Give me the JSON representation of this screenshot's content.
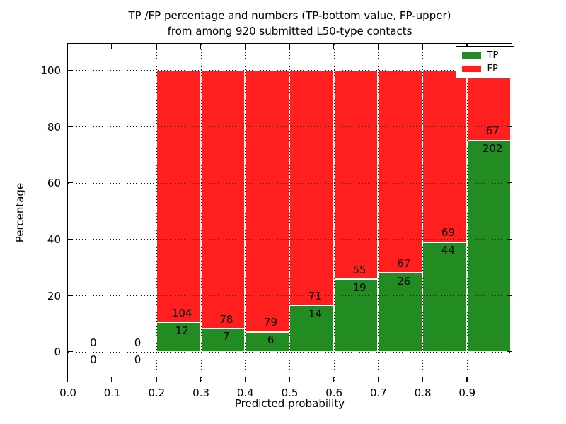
{
  "figure": {
    "title_line1": "TP /FP percentage and numbers (TP-bottom value, FP-upper)",
    "title_line2": "from among 920 submitted L50-type contacts",
    "xlabel": "Predicted probability",
    "ylabel": "Percentage"
  },
  "colors": {
    "tp": "#228b22",
    "fp": "#ff1f1f",
    "bar_edge": "#ffffff",
    "grid": "#111111",
    "axis": "#000000",
    "background": "#ffffff"
  },
  "chart_data": {
    "type": "bar",
    "stacked": true,
    "orientation": "vertical",
    "title": "TP /FP percentage and numbers (TP-bottom value, FP-upper) from among 920 submitted L50-type contacts",
    "xlabel": "Predicted probability",
    "ylabel": "Percentage",
    "xlim": [
      0.0,
      1.0
    ],
    "ylim": [
      -10.5,
      109.5
    ],
    "grid": true,
    "grid_style": "dotted",
    "total_submitted": 920,
    "bar_note": "Each bar stacks to 100%; green bottom = TP share, red top = FP share; numbers printed are raw counts (TP below boundary, FP above boundary)",
    "xticks": [
      {
        "v": 0.0,
        "label": "0.0"
      },
      {
        "v": 0.1,
        "label": "0.1"
      },
      {
        "v": 0.2,
        "label": "0.2"
      },
      {
        "v": 0.3,
        "label": "0.3"
      },
      {
        "v": 0.4,
        "label": "0.4"
      },
      {
        "v": 0.5,
        "label": "0.5"
      },
      {
        "v": 0.6,
        "label": "0.6"
      },
      {
        "v": 0.7,
        "label": "0.7"
      },
      {
        "v": 0.8,
        "label": "0.8"
      },
      {
        "v": 0.9,
        "label": "0.9"
      }
    ],
    "yticks": [
      {
        "v": 0,
        "label": "0"
      },
      {
        "v": 20,
        "label": "20"
      },
      {
        "v": 40,
        "label": "40"
      },
      {
        "v": 60,
        "label": "60"
      },
      {
        "v": 80,
        "label": "80"
      },
      {
        "v": 100,
        "label": "100"
      }
    ],
    "bins": [
      {
        "range": [
          0.0,
          0.1
        ],
        "tp": 0,
        "fp": 0,
        "tp_pct": 0.0,
        "has_bar": false
      },
      {
        "range": [
          0.1,
          0.2
        ],
        "tp": 0,
        "fp": 0,
        "tp_pct": 0.0,
        "has_bar": false
      },
      {
        "range": [
          0.2,
          0.3
        ],
        "tp": 12,
        "fp": 104,
        "tp_pct": 10.34,
        "has_bar": true
      },
      {
        "range": [
          0.3,
          0.4
        ],
        "tp": 7,
        "fp": 78,
        "tp_pct": 8.24,
        "has_bar": true
      },
      {
        "range": [
          0.4,
          0.5
        ],
        "tp": 6,
        "fp": 79,
        "tp_pct": 7.06,
        "has_bar": true
      },
      {
        "range": [
          0.5,
          0.6
        ],
        "tp": 14,
        "fp": 71,
        "tp_pct": 16.47,
        "has_bar": true
      },
      {
        "range": [
          0.6,
          0.7
        ],
        "tp": 19,
        "fp": 55,
        "tp_pct": 25.68,
        "has_bar": true
      },
      {
        "range": [
          0.7,
          0.8
        ],
        "tp": 26,
        "fp": 67,
        "tp_pct": 27.96,
        "has_bar": true
      },
      {
        "range": [
          0.8,
          0.9
        ],
        "tp": 44,
        "fp": 69,
        "tp_pct": 38.94,
        "has_bar": true
      },
      {
        "range": [
          0.9,
          1.0
        ],
        "tp": 202,
        "fp": 67,
        "tp_pct": 75.09,
        "has_bar": true
      }
    ],
    "legend": {
      "position": "upper right",
      "entries": [
        {
          "name": "tp",
          "label": "TP",
          "color": "#228b22"
        },
        {
          "name": "fp",
          "label": "FP",
          "color": "#ff1f1f"
        }
      ]
    }
  }
}
